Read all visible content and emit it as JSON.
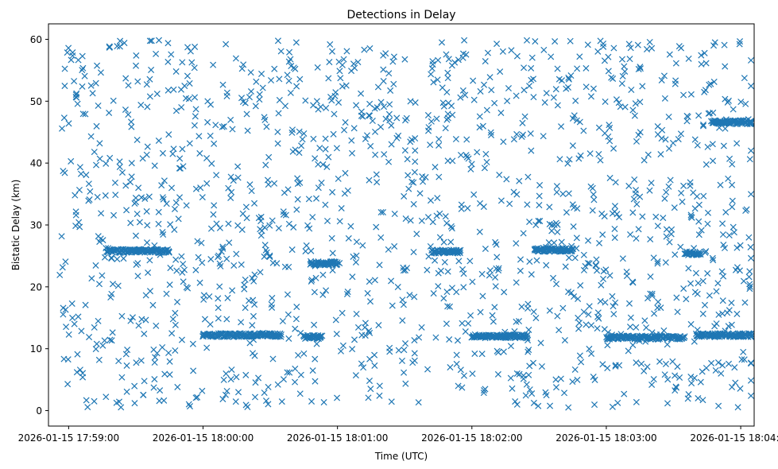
{
  "chart_data": {
    "type": "scatter",
    "title": "Detections in Delay",
    "xlabel": "Time (UTC)",
    "ylabel": "Bistatic Delay (km)",
    "x_ticks": [
      "2026-01-15 17:59:00",
      "2026-01-15 18:00:00",
      "2026-01-15 18:01:00",
      "2026-01-15 18:02:00",
      "2026-01-15 18:03:00",
      "2026-01-15 18:04:00"
    ],
    "y_ticks": [
      "0",
      "10",
      "20",
      "30",
      "40",
      "50",
      "60"
    ],
    "xlim": [
      "2026-01-15 17:58:51",
      "2026-01-15 18:04:06"
    ],
    "ylim": [
      -2.5,
      62.5
    ],
    "grid": false,
    "marker": "x",
    "color": "#1f77b4",
    "series": [
      {
        "tracks": [
          {
            "x_start": "2026-01-15 18:00:00",
            "x_end": "2026-01-15 18:00:35",
            "y": 12.2
          },
          {
            "x_start": "2026-01-15 18:00:45",
            "x_end": "2026-01-15 18:00:53",
            "y": 11.9
          },
          {
            "x_start": "2026-01-15 18:02:00",
            "x_end": "2026-01-15 18:02:25",
            "y": 12.0
          },
          {
            "x_start": "2026-01-15 18:03:00",
            "x_end": "2026-01-15 18:03:35",
            "y": 11.8
          },
          {
            "x_start": "2026-01-15 18:03:40",
            "x_end": "2026-01-15 18:04:06",
            "y": 12.2
          },
          {
            "x_start": "2026-01-15 17:59:17",
            "x_end": "2026-01-15 17:59:45",
            "y": 25.8
          },
          {
            "x_start": "2026-01-15 18:01:42",
            "x_end": "2026-01-15 18:01:55",
            "y": 25.7
          },
          {
            "x_start": "2026-01-15 18:02:28",
            "x_end": "2026-01-15 18:02:45",
            "y": 26.0
          },
          {
            "x_start": "2026-01-15 18:03:35",
            "x_end": "2026-01-15 18:03:42",
            "y": 25.4
          },
          {
            "x_start": "2026-01-15 18:03:47",
            "x_end": "2026-01-15 18:04:06",
            "y": 46.6
          },
          {
            "x_start": "2026-01-15 18:00:48",
            "x_end": "2026-01-15 18:01:00",
            "y": 23.8
          }
        ],
        "noise": {
          "x_start": "2026-01-15 17:58:56",
          "x_end": "2026-01-15 18:04:07",
          "y_min": 0.5,
          "y_max": 59.9,
          "count": 1500
        }
      }
    ]
  }
}
